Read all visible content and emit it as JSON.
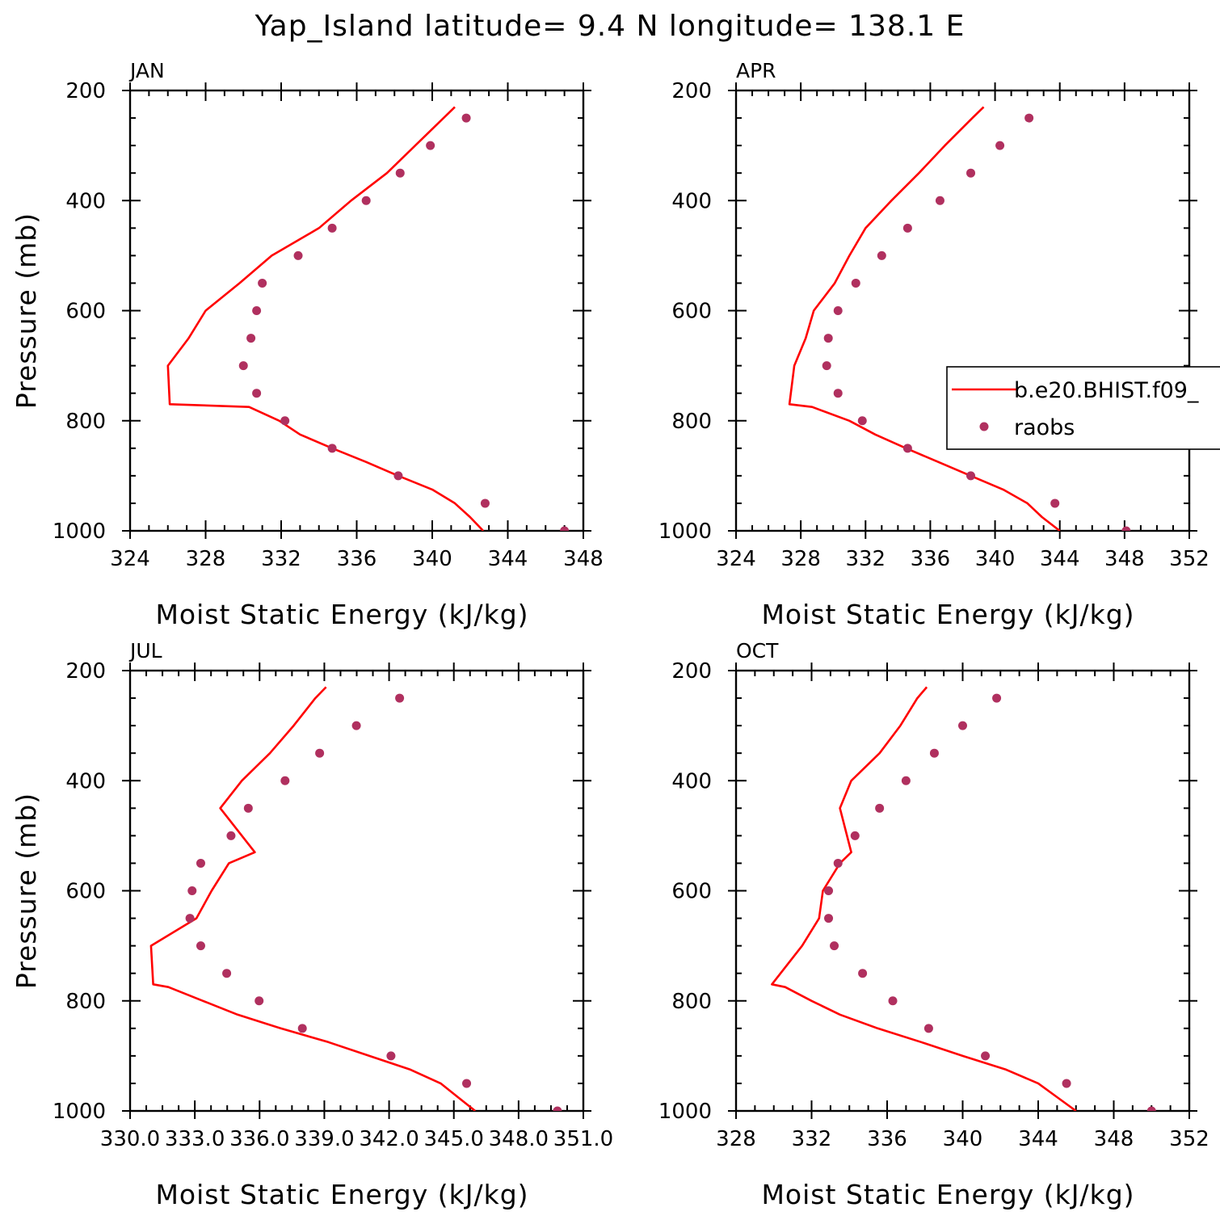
{
  "title": "Yap_Island  latitude= 9.4 N longitude= 138.1 E",
  "colors": {
    "model": "#ff0000",
    "obs": "#b0305f",
    "axis": "#000000"
  },
  "legend": {
    "entries": [
      {
        "label": "b.e20.BHIST.f09_",
        "style": "line"
      },
      {
        "label": "raobs",
        "style": "marker"
      }
    ]
  },
  "chart_data": [
    {
      "type": "line",
      "panel": "JAN",
      "xlabel": "Moist Static Energy (kJ/kg)",
      "ylabel": "Pressure (mb)",
      "xlim": [
        324,
        348
      ],
      "ylim": [
        1000,
        200
      ],
      "xticks": [
        "324",
        "328",
        "332",
        "336",
        "340",
        "344",
        "348"
      ],
      "yticks": [
        "200",
        "400",
        "600",
        "800",
        "1000"
      ],
      "series": [
        {
          "name": "b.e20.BHIST.f09_",
          "kind": "line",
          "pressure": [
            1000,
            975,
            950,
            925,
            900,
            875,
            850,
            825,
            800,
            775,
            770,
            700,
            650,
            600,
            550,
            500,
            450,
            400,
            350,
            300,
            250,
            230
          ],
          "mse": [
            342.7,
            342.0,
            341.2,
            340.0,
            338.2,
            336.5,
            334.7,
            333.0,
            331.9,
            330.3,
            326.1,
            326.0,
            327.1,
            328.0,
            329.8,
            331.5,
            334.0,
            335.7,
            337.6,
            339.1,
            340.6,
            341.2
          ]
        },
        {
          "name": "raobs",
          "kind": "scatter",
          "pressure": [
            1000,
            950,
            900,
            850,
            800,
            750,
            700,
            650,
            600,
            550,
            500,
            450,
            400,
            350,
            300,
            250
          ],
          "mse": [
            347.0,
            342.8,
            338.2,
            334.7,
            332.2,
            330.7,
            330.0,
            330.4,
            330.7,
            331.0,
            332.9,
            334.7,
            336.5,
            338.3,
            339.9,
            341.8
          ]
        }
      ]
    },
    {
      "type": "line",
      "panel": "APR",
      "xlabel": "Moist Static Energy (kJ/kg)",
      "ylabel": "",
      "xlim": [
        324,
        352
      ],
      "ylim": [
        1000,
        200
      ],
      "xticks": [
        "324",
        "328",
        "332",
        "336",
        "340",
        "344",
        "348",
        "352"
      ],
      "yticks": [
        "200",
        "400",
        "600",
        "800",
        "1000"
      ],
      "series": [
        {
          "name": "b.e20.BHIST.f09_",
          "kind": "line",
          "pressure": [
            1000,
            975,
            950,
            925,
            900,
            875,
            850,
            825,
            800,
            775,
            770,
            700,
            650,
            600,
            550,
            500,
            450,
            400,
            350,
            300,
            250,
            230
          ],
          "mse": [
            344.0,
            342.9,
            342.0,
            340.5,
            338.5,
            336.5,
            334.5,
            332.6,
            331.0,
            328.7,
            327.3,
            327.6,
            328.3,
            328.8,
            330.1,
            331.0,
            332.0,
            333.6,
            335.3,
            336.9,
            338.6,
            339.3
          ]
        },
        {
          "name": "raobs",
          "kind": "scatter",
          "pressure": [
            1000,
            950,
            900,
            850,
            800,
            750,
            700,
            650,
            600,
            550,
            500,
            450,
            400,
            350,
            300,
            250
          ],
          "mse": [
            348.1,
            343.7,
            338.5,
            334.6,
            331.8,
            330.3,
            329.6,
            329.7,
            330.3,
            331.4,
            333.0,
            334.6,
            336.6,
            338.5,
            340.3,
            342.1
          ]
        }
      ]
    },
    {
      "type": "line",
      "panel": "JUL",
      "xlabel": "Moist Static Energy (kJ/kg)",
      "ylabel": "Pressure (mb)",
      "xlim": [
        330.03,
        351.0
      ],
      "ylim": [
        1000,
        200
      ],
      "xticks": [
        "330.0",
        "333.0",
        "336.0",
        "339.0",
        "342.0",
        "345.0",
        "348.0",
        "351.0"
      ],
      "yticks": [
        "200",
        "400",
        "600",
        "800",
        "1000"
      ],
      "series": [
        {
          "name": "b.e20.BHIST.f09_",
          "kind": "line",
          "pressure": [
            1000,
            975,
            950,
            925,
            900,
            875,
            850,
            825,
            800,
            775,
            770,
            700,
            650,
            600,
            550,
            530,
            450,
            400,
            350,
            300,
            250,
            230
          ],
          "mse": [
            346.0,
            345.2,
            344.4,
            343.0,
            341.1,
            339.2,
            337.0,
            335.0,
            333.4,
            331.8,
            331.1,
            331.0,
            333.1,
            333.8,
            334.6,
            335.8,
            334.2,
            335.2,
            336.5,
            337.6,
            338.6,
            339.1
          ]
        },
        {
          "name": "raobs",
          "kind": "scatter",
          "pressure": [
            1000,
            950,
            900,
            850,
            800,
            750,
            700,
            650,
            600,
            550,
            500,
            450,
            400,
            350,
            300,
            250
          ],
          "mse": [
            349.8,
            345.6,
            342.1,
            338.0,
            336.0,
            334.5,
            333.3,
            332.8,
            332.9,
            333.3,
            334.7,
            335.5,
            337.2,
            338.8,
            340.5,
            342.5
          ]
        }
      ]
    },
    {
      "type": "line",
      "panel": "OCT",
      "xlabel": "Moist Static Energy (kJ/kg)",
      "ylabel": "",
      "xlim": [
        328,
        352
      ],
      "ylim": [
        1000,
        200
      ],
      "xticks": [
        "328",
        "332",
        "336",
        "340",
        "344",
        "348",
        "352"
      ],
      "yticks": [
        "200",
        "400",
        "600",
        "800",
        "1000"
      ],
      "series": [
        {
          "name": "b.e20.BHIST.f09_",
          "kind": "line",
          "pressure": [
            1000,
            975,
            950,
            925,
            900,
            875,
            850,
            825,
            800,
            775,
            770,
            700,
            650,
            600,
            550,
            530,
            450,
            400,
            350,
            300,
            250,
            230
          ],
          "mse": [
            346.0,
            345.0,
            344.0,
            342.3,
            340.0,
            337.8,
            335.5,
            333.5,
            332.0,
            330.6,
            329.9,
            331.5,
            332.4,
            332.6,
            333.5,
            334.1,
            333.5,
            334.1,
            335.6,
            336.7,
            337.6,
            338.1
          ]
        },
        {
          "name": "raobs",
          "kind": "scatter",
          "pressure": [
            1000,
            950,
            900,
            850,
            800,
            750,
            700,
            650,
            600,
            550,
            500,
            450,
            400,
            350,
            300,
            250
          ],
          "mse": [
            350.0,
            345.5,
            341.2,
            338.2,
            336.3,
            334.7,
            333.2,
            332.9,
            332.9,
            333.4,
            334.3,
            335.6,
            337.0,
            338.5,
            340.0,
            341.8
          ]
        }
      ]
    }
  ]
}
